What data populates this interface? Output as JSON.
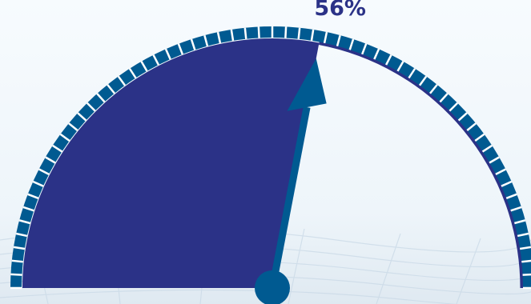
{
  "gauge": {
    "value_percent": 56,
    "label": "56%",
    "colors": {
      "fill": "#2b3287",
      "ring": "#005a91",
      "tick": "#ffffff",
      "needle": "#005a91",
      "label": "#2b3287",
      "background": "#f4f8fc"
    }
  }
}
